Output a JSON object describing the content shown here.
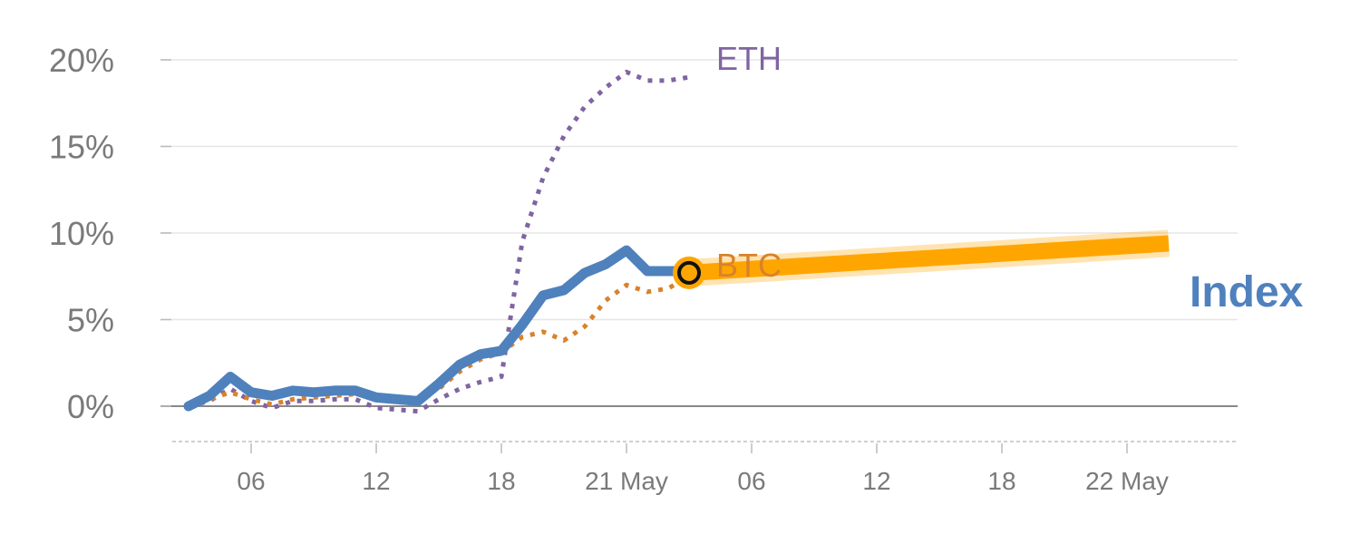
{
  "chart_data": {
    "type": "line",
    "ylim": [
      -2,
      20
    ],
    "grid": true,
    "y_ticks": [
      {
        "value": 0,
        "label": "0%"
      },
      {
        "value": 5,
        "label": "5%"
      },
      {
        "value": 10,
        "label": "10%"
      },
      {
        "value": 15,
        "label": "15%"
      },
      {
        "value": 20,
        "label": "20%"
      }
    ],
    "x_ticks": [
      {
        "value": 3,
        "label": "06"
      },
      {
        "value": 9,
        "label": "12"
      },
      {
        "value": 15,
        "label": "18"
      },
      {
        "value": 21,
        "label": "21 May"
      },
      {
        "value": 27,
        "label": "06"
      },
      {
        "value": 33,
        "label": "12"
      },
      {
        "value": 39,
        "label": "18"
      },
      {
        "value": 45,
        "label": "22 May"
      }
    ],
    "series": [
      {
        "name": "Index",
        "color": "#4f81bd",
        "style": "solid",
        "x": [
          0,
          1,
          2,
          3,
          4,
          5,
          6,
          7,
          8,
          9,
          10,
          11,
          12,
          13,
          14,
          15,
          16,
          17,
          18,
          19,
          20,
          21,
          22,
          23,
          24
        ],
        "values": [
          0,
          0.6,
          1.7,
          0.8,
          0.6,
          0.9,
          0.8,
          0.9,
          0.9,
          0.5,
          0.4,
          0.3,
          1.3,
          2.4,
          3.0,
          3.2,
          4.7,
          6.4,
          6.7,
          7.7,
          8.2,
          9.0,
          7.8,
          7.8,
          7.8
        ]
      },
      {
        "name": "BTC",
        "color": "#d9822b",
        "style": "dotted",
        "x": [
          0,
          1,
          2,
          3,
          4,
          5,
          6,
          7,
          8,
          9,
          10,
          11,
          12,
          13,
          14,
          15,
          16,
          17,
          18,
          19,
          20,
          21,
          22,
          23,
          24
        ],
        "values": [
          0,
          0.4,
          0.8,
          0.4,
          0.1,
          0.4,
          0.5,
          0.6,
          0.7,
          0.5,
          0.5,
          0.4,
          1.0,
          2.0,
          2.7,
          3.1,
          4.0,
          4.3,
          3.8,
          4.6,
          6.1,
          7.0,
          6.6,
          6.8,
          7.5
        ]
      },
      {
        "name": "ETH",
        "color": "#8064a2",
        "style": "dotted",
        "x": [
          0,
          1,
          2,
          3,
          4,
          5,
          6,
          7,
          8,
          9,
          10,
          11,
          12,
          13,
          14,
          15,
          16,
          17,
          18,
          19,
          20,
          21,
          22,
          23,
          24
        ],
        "values": [
          0,
          0.3,
          1.0,
          0.3,
          -0.1,
          0.3,
          0.3,
          0.4,
          0.4,
          -0.1,
          -0.2,
          -0.3,
          0.4,
          1.0,
          1.4,
          1.7,
          9.5,
          13.2,
          15.6,
          17.3,
          18.4,
          19.3,
          18.8,
          18.8,
          19.0
        ]
      }
    ],
    "projection": {
      "color": "#ffa500",
      "x": [
        24,
        47
      ],
      "values": [
        7.7,
        9.4
      ]
    },
    "marker": {
      "x": 24,
      "value": 7.7
    },
    "labels": {
      "eth": "ETH",
      "btc": "BTC",
      "index": "Index"
    }
  }
}
